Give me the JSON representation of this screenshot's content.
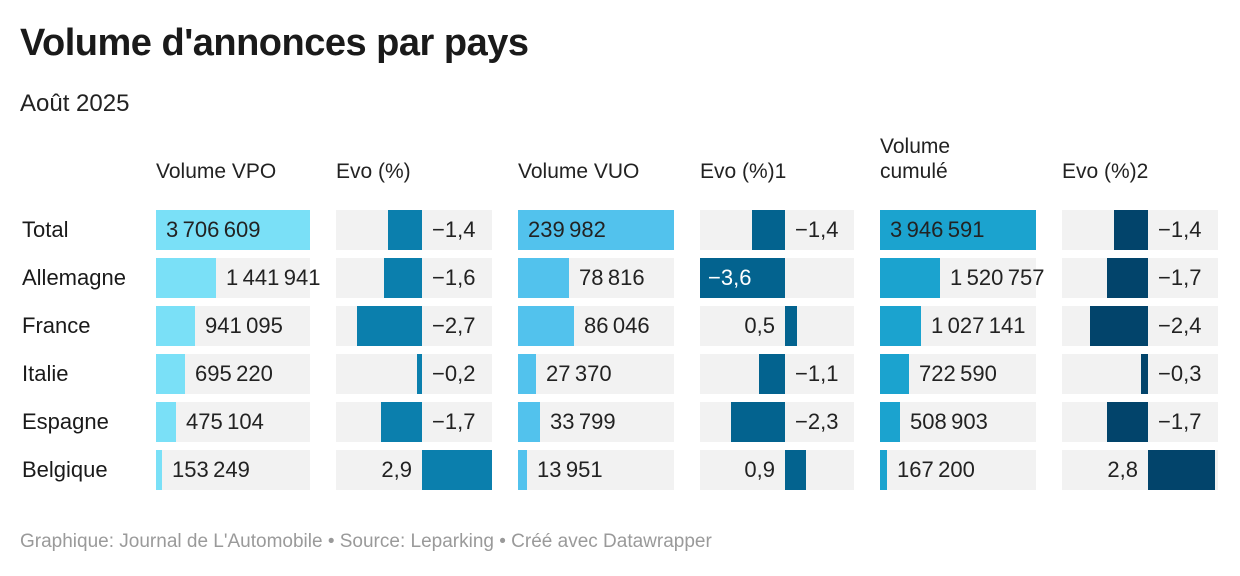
{
  "title": "Volume d'annonces par pays",
  "subtitle": "Août 2025",
  "footer": "Graphique: Journal de L'Automobile • Source: Leparking • Créé avec Datawrapper",
  "chart_data": {
    "type": "table",
    "columns": [
      {
        "key": "vpo",
        "label": "Volume VPO",
        "kind": "volume",
        "color": "#7ae0f7"
      },
      {
        "key": "evo1",
        "label": "Evo (%)",
        "kind": "evo",
        "color": "#0b7fad"
      },
      {
        "key": "vuo",
        "label": "Volume VUO",
        "kind": "volume",
        "color": "#52c2ed"
      },
      {
        "key": "evo2",
        "label": "Evo (%)1",
        "kind": "evo",
        "color": "#03638f"
      },
      {
        "key": "cum",
        "label": "Volume cumulé",
        "kind": "volume",
        "color": "#1ba3cf"
      },
      {
        "key": "evo3",
        "label": "Evo (%)2",
        "kind": "evo",
        "color": "#02446b"
      }
    ],
    "rows": [
      {
        "label": "Total",
        "vpo": 3706609,
        "evo1": -1.4,
        "vuo": 239982,
        "evo2": -1.4,
        "cum": 3946591,
        "evo3": -1.4
      },
      {
        "label": "Allemagne",
        "vpo": 1441941,
        "evo1": -1.6,
        "vuo": 78816,
        "evo2": -3.6,
        "cum": 1520757,
        "evo3": -1.7
      },
      {
        "label": "France",
        "vpo": 941095,
        "evo1": -2.7,
        "vuo": 86046,
        "evo2": 0.5,
        "cum": 1027141,
        "evo3": -2.4
      },
      {
        "label": "Italie",
        "vpo": 695220,
        "evo1": -0.2,
        "vuo": 27370,
        "evo2": -1.1,
        "cum": 722590,
        "evo3": -0.3
      },
      {
        "label": "Espagne",
        "vpo": 475104,
        "evo1": -1.7,
        "vuo": 33799,
        "evo2": -2.3,
        "cum": 508903,
        "evo3": -1.7
      },
      {
        "label": "Belgique",
        "vpo": 153249,
        "evo1": 2.9,
        "vuo": 13951,
        "evo2": 0.9,
        "cum": 167200,
        "evo3": 2.8
      }
    ],
    "evo_range": [
      -3.6,
      2.9
    ]
  }
}
